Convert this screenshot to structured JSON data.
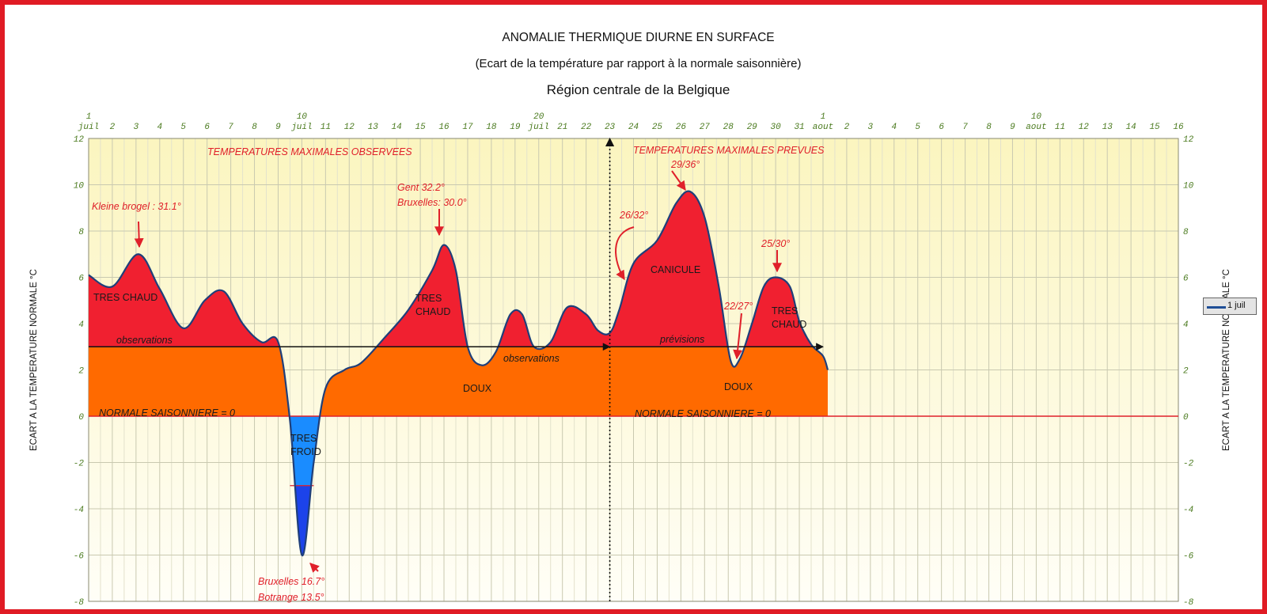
{
  "chart_data": {
    "type": "area",
    "title": "ANOMALIE THERMIQUE DIURNE EN SURFACE",
    "subtitle": "(Ecart de la température par rapport à la normale saisonnière)",
    "region": "Région centrale de la Belgique",
    "ylabel": "ECART A LA TEMPERATURE NORMALE °C",
    "ylim": [
      -8,
      12
    ],
    "yticks": [
      12,
      10,
      8,
      6,
      4,
      2,
      0,
      -2,
      -4,
      -6,
      -8
    ],
    "xlim": [
      1,
      47
    ],
    "grid": true,
    "legend": {
      "position": "right",
      "label": "1 juil"
    },
    "x_tick_labels": [
      {
        "x": 1,
        "top": "1",
        "bottom": "juil"
      },
      {
        "x": 2,
        "top": "",
        "bottom": "2"
      },
      {
        "x": 3,
        "top": "",
        "bottom": "3"
      },
      {
        "x": 4,
        "top": "",
        "bottom": "4"
      },
      {
        "x": 5,
        "top": "",
        "bottom": "5"
      },
      {
        "x": 6,
        "top": "",
        "bottom": "6"
      },
      {
        "x": 7,
        "top": "",
        "bottom": "7"
      },
      {
        "x": 8,
        "top": "",
        "bottom": "8"
      },
      {
        "x": 9,
        "top": "",
        "bottom": "9"
      },
      {
        "x": 10,
        "top": "10",
        "bottom": "juil"
      },
      {
        "x": 11,
        "top": "",
        "bottom": "11"
      },
      {
        "x": 12,
        "top": "",
        "bottom": "12"
      },
      {
        "x": 13,
        "top": "",
        "bottom": "13"
      },
      {
        "x": 14,
        "top": "",
        "bottom": "14"
      },
      {
        "x": 15,
        "top": "",
        "bottom": "15"
      },
      {
        "x": 16,
        "top": "",
        "bottom": "16"
      },
      {
        "x": 17,
        "top": "",
        "bottom": "17"
      },
      {
        "x": 18,
        "top": "",
        "bottom": "18"
      },
      {
        "x": 19,
        "top": "",
        "bottom": "19"
      },
      {
        "x": 20,
        "top": "20",
        "bottom": "juil"
      },
      {
        "x": 21,
        "top": "",
        "bottom": "21"
      },
      {
        "x": 22,
        "top": "",
        "bottom": "22"
      },
      {
        "x": 23,
        "top": "",
        "bottom": "23"
      },
      {
        "x": 24,
        "top": "",
        "bottom": "24"
      },
      {
        "x": 25,
        "top": "",
        "bottom": "25"
      },
      {
        "x": 26,
        "top": "",
        "bottom": "26"
      },
      {
        "x": 27,
        "top": "",
        "bottom": "27"
      },
      {
        "x": 28,
        "top": "",
        "bottom": "28"
      },
      {
        "x": 29,
        "top": "",
        "bottom": "29"
      },
      {
        "x": 30,
        "top": "",
        "bottom": "30"
      },
      {
        "x": 31,
        "top": "",
        "bottom": "31"
      },
      {
        "x": 32,
        "top": "1",
        "bottom": "aout"
      },
      {
        "x": 33,
        "top": "",
        "bottom": "2"
      },
      {
        "x": 34,
        "top": "",
        "bottom": "3"
      },
      {
        "x": 35,
        "top": "",
        "bottom": "4"
      },
      {
        "x": 36,
        "top": "",
        "bottom": "5"
      },
      {
        "x": 37,
        "top": "",
        "bottom": "6"
      },
      {
        "x": 38,
        "top": "",
        "bottom": "7"
      },
      {
        "x": 39,
        "top": "",
        "bottom": "8"
      },
      {
        "x": 40,
        "top": "",
        "bottom": "9"
      },
      {
        "x": 41,
        "top": "10",
        "bottom": "aout"
      },
      {
        "x": 42,
        "top": "",
        "bottom": "11"
      },
      {
        "x": 43,
        "top": "",
        "bottom": "12"
      },
      {
        "x": 44,
        "top": "",
        "bottom": "13"
      },
      {
        "x": 45,
        "top": "",
        "bottom": "14"
      },
      {
        "x": 46,
        "top": "",
        "bottom": "15"
      },
      {
        "x": 47,
        "top": "",
        "bottom": "16"
      }
    ],
    "series": [
      {
        "name": "1 juil",
        "x": [
          1,
          2,
          3.1,
          4,
          5,
          5.9,
          6.7,
          7.5,
          8.3,
          9,
          9.5,
          10,
          10.5,
          11,
          11.8,
          12.5,
          13.5,
          14.5,
          15.5,
          16,
          16.5,
          17,
          17.6,
          18.2,
          18.8,
          19.3,
          19.8,
          20.5,
          21.2,
          22,
          22.5,
          23,
          23.4,
          24,
          25,
          25.8,
          26.4,
          27,
          27.6,
          28.1,
          28.5,
          29,
          29.5,
          30,
          30.6,
          31,
          31.5,
          32,
          32.2
        ],
        "y": [
          6.1,
          5.6,
          7,
          5.5,
          3.8,
          5,
          5.4,
          4,
          3.2,
          3.2,
          -0.2,
          -6,
          -2,
          1.2,
          2,
          2.3,
          3.4,
          4.6,
          6.3,
          7.4,
          6.3,
          3,
          2.2,
          2.8,
          4.4,
          4.4,
          3,
          3.2,
          4.7,
          4.4,
          3.7,
          3.6,
          4.6,
          6.6,
          7.6,
          9.2,
          9.7,
          8.6,
          5.6,
          2.4,
          2.5,
          4,
          5.6,
          6,
          5.6,
          4.1,
          3.1,
          2.6,
          2
        ]
      }
    ],
    "fill_thresholds": {
      "red_above": 3,
      "blue_below": 0,
      "dark_blue_below": -3
    },
    "observations_line": 3,
    "forecast_start_day": 23,
    "zone_labels": [
      "TRES CHAUD",
      "TRES CHAUD",
      "TRES CHAUD",
      "TRES FROID",
      "CANICULE",
      "DOUX",
      "DOUX",
      "observations",
      "observations",
      "prévisions",
      "NORMALE SAISONNIERE = 0",
      "NORMALE SAISONNIERE = 0"
    ],
    "annotations": [
      "TEMPERATURES MAXIMALES OBSERVEES",
      "TEMPERATURES MAXIMALES PREVUES",
      "Kleine brogel : 31.1°",
      "Gent 32.2°",
      "Bruxelles: 30.0°",
      "Bruxelles 16.7°",
      "Botrange 13.5°",
      "26/32°",
      "29/36°",
      "22/27°",
      "25/30°"
    ]
  }
}
